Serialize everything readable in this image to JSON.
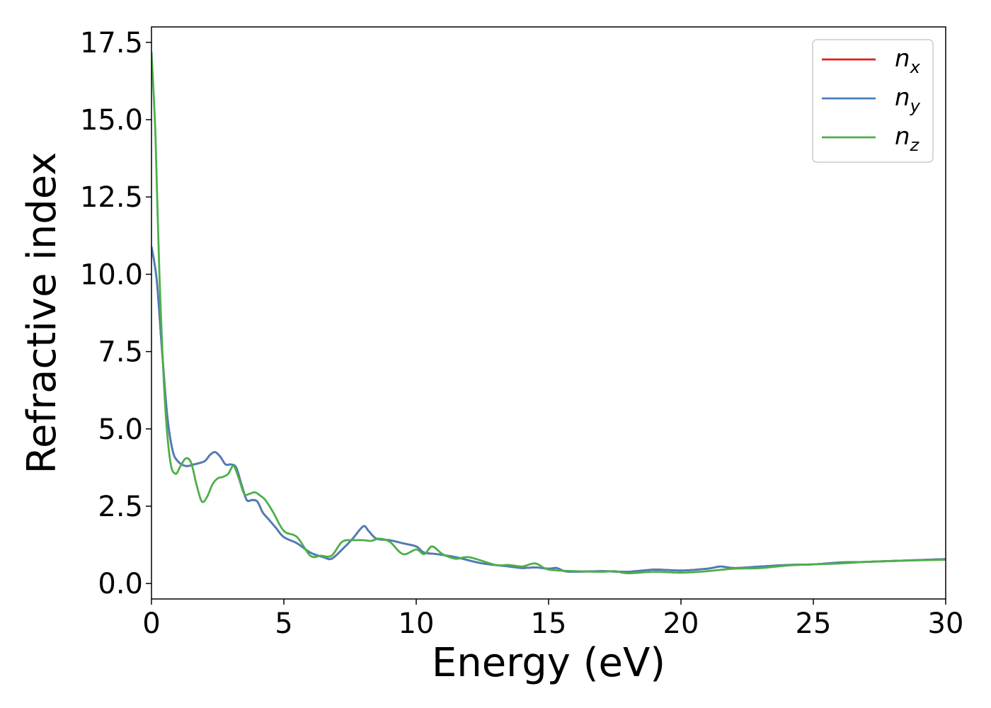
{
  "chart_data": {
    "type": "line",
    "xlabel": "Energy (eV)",
    "ylabel": "Refractive index",
    "xlim": [
      0,
      30
    ],
    "ylim": [
      -0.5,
      18.0
    ],
    "xticks": [
      {
        "value": 0,
        "label": "0"
      },
      {
        "value": 5,
        "label": "5"
      },
      {
        "value": 10,
        "label": "10"
      },
      {
        "value": 15,
        "label": "15"
      },
      {
        "value": 20,
        "label": "20"
      },
      {
        "value": 25,
        "label": "25"
      },
      {
        "value": 30,
        "label": "30"
      }
    ],
    "yticks": [
      {
        "value": 0.0,
        "label": "0.0"
      },
      {
        "value": 2.5,
        "label": "2.5"
      },
      {
        "value": 5.0,
        "label": "5.0"
      },
      {
        "value": 7.5,
        "label": "7.5"
      },
      {
        "value": 10.0,
        "label": "10.0"
      },
      {
        "value": 12.5,
        "label": "12.5"
      },
      {
        "value": 15.0,
        "label": "15.0"
      },
      {
        "value": 17.5,
        "label": "17.5"
      }
    ],
    "grid": false,
    "legend_position": "top-right",
    "series": [
      {
        "name": "n_x",
        "legend_base": "n",
        "legend_sub": "x",
        "color": "#e41a1c",
        "x": [
          0.0,
          0.2,
          0.4,
          0.6,
          0.8,
          1.0,
          1.3,
          1.6,
          2.0,
          2.2,
          2.4,
          2.6,
          2.8,
          3.0,
          3.2,
          3.4,
          3.6,
          3.8,
          4.0,
          4.2,
          4.4,
          4.7,
          5.0,
          5.5,
          6.0,
          6.5,
          6.8,
          7.2,
          7.6,
          8.0,
          8.2,
          8.5,
          9.0,
          9.5,
          10.0,
          10.3,
          10.8,
          11.5,
          12.5,
          13.5,
          14.0,
          14.5,
          15.0,
          15.3,
          15.6,
          16.0,
          17.0,
          18.0,
          19.0,
          20.0,
          21.0,
          21.5,
          22.0,
          23.0,
          24.0,
          25.0,
          26.0,
          27.0,
          28.0,
          29.0,
          30.0
        ],
        "y": [
          10.9,
          9.8,
          7.5,
          5.4,
          4.3,
          3.95,
          3.8,
          3.85,
          3.95,
          4.15,
          4.25,
          4.1,
          3.85,
          3.85,
          3.75,
          3.2,
          2.7,
          2.7,
          2.65,
          2.3,
          2.1,
          1.8,
          1.5,
          1.3,
          1.0,
          0.85,
          0.8,
          1.1,
          1.45,
          1.85,
          1.7,
          1.45,
          1.4,
          1.3,
          1.2,
          1.0,
          0.95,
          0.85,
          0.65,
          0.55,
          0.5,
          0.52,
          0.48,
          0.5,
          0.4,
          0.38,
          0.4,
          0.38,
          0.45,
          0.42,
          0.48,
          0.55,
          0.5,
          0.55,
          0.6,
          0.62,
          0.68,
          0.7,
          0.73,
          0.76,
          0.79
        ]
      },
      {
        "name": "n_y",
        "legend_base": "n",
        "legend_sub": "y",
        "color": "#4a7ebb",
        "x": [
          0.0,
          0.2,
          0.4,
          0.6,
          0.8,
          1.0,
          1.3,
          1.6,
          2.0,
          2.2,
          2.4,
          2.6,
          2.8,
          3.0,
          3.2,
          3.4,
          3.6,
          3.8,
          4.0,
          4.2,
          4.4,
          4.7,
          5.0,
          5.5,
          6.0,
          6.5,
          6.8,
          7.2,
          7.6,
          8.0,
          8.2,
          8.5,
          9.0,
          9.5,
          10.0,
          10.3,
          10.8,
          11.5,
          12.5,
          13.5,
          14.0,
          14.5,
          15.0,
          15.3,
          15.6,
          16.0,
          17.0,
          18.0,
          19.0,
          20.0,
          21.0,
          21.5,
          22.0,
          23.0,
          24.0,
          25.0,
          26.0,
          27.0,
          28.0,
          29.0,
          30.0
        ],
        "y": [
          10.9,
          9.8,
          7.5,
          5.4,
          4.3,
          3.95,
          3.8,
          3.85,
          3.95,
          4.15,
          4.25,
          4.1,
          3.85,
          3.85,
          3.75,
          3.2,
          2.7,
          2.7,
          2.65,
          2.3,
          2.1,
          1.8,
          1.5,
          1.3,
          1.0,
          0.85,
          0.8,
          1.1,
          1.45,
          1.85,
          1.7,
          1.45,
          1.4,
          1.3,
          1.2,
          1.0,
          0.95,
          0.85,
          0.65,
          0.55,
          0.5,
          0.52,
          0.48,
          0.5,
          0.4,
          0.38,
          0.4,
          0.38,
          0.45,
          0.42,
          0.48,
          0.55,
          0.5,
          0.55,
          0.6,
          0.62,
          0.68,
          0.7,
          0.73,
          0.76,
          0.79
        ]
      },
      {
        "name": "n_z",
        "legend_base": "n",
        "legend_sub": "z",
        "color": "#4daf4a",
        "x": [
          0.0,
          0.15,
          0.3,
          0.5,
          0.7,
          0.9,
          1.1,
          1.3,
          1.5,
          1.7,
          1.9,
          2.1,
          2.3,
          2.5,
          2.7,
          2.9,
          3.1,
          3.3,
          3.5,
          3.7,
          3.9,
          4.1,
          4.3,
          4.6,
          5.0,
          5.5,
          6.0,
          6.4,
          6.8,
          7.2,
          7.6,
          8.0,
          8.3,
          8.6,
          9.0,
          9.5,
          10.0,
          10.3,
          10.6,
          11.0,
          11.5,
          12.0,
          13.0,
          13.5,
          14.0,
          14.5,
          15.0,
          16.0,
          17.0,
          17.5,
          18.0,
          19.0,
          20.0,
          21.0,
          22.0,
          23.0,
          24.0,
          25.0,
          26.0,
          27.0,
          28.0,
          29.0,
          30.0
        ],
        "y": [
          17.2,
          14.5,
          10.0,
          6.0,
          4.0,
          3.55,
          3.8,
          4.05,
          3.9,
          3.2,
          2.65,
          2.8,
          3.2,
          3.4,
          3.45,
          3.55,
          3.8,
          3.4,
          2.9,
          2.9,
          2.95,
          2.85,
          2.7,
          2.3,
          1.7,
          1.5,
          0.9,
          0.9,
          0.9,
          1.35,
          1.4,
          1.4,
          1.38,
          1.45,
          1.35,
          0.95,
          1.1,
          0.95,
          1.2,
          0.95,
          0.8,
          0.85,
          0.6,
          0.6,
          0.55,
          0.65,
          0.45,
          0.4,
          0.38,
          0.4,
          0.33,
          0.38,
          0.35,
          0.4,
          0.48,
          0.5,
          0.58,
          0.62,
          0.65,
          0.7,
          0.73,
          0.75,
          0.77
        ]
      }
    ]
  }
}
